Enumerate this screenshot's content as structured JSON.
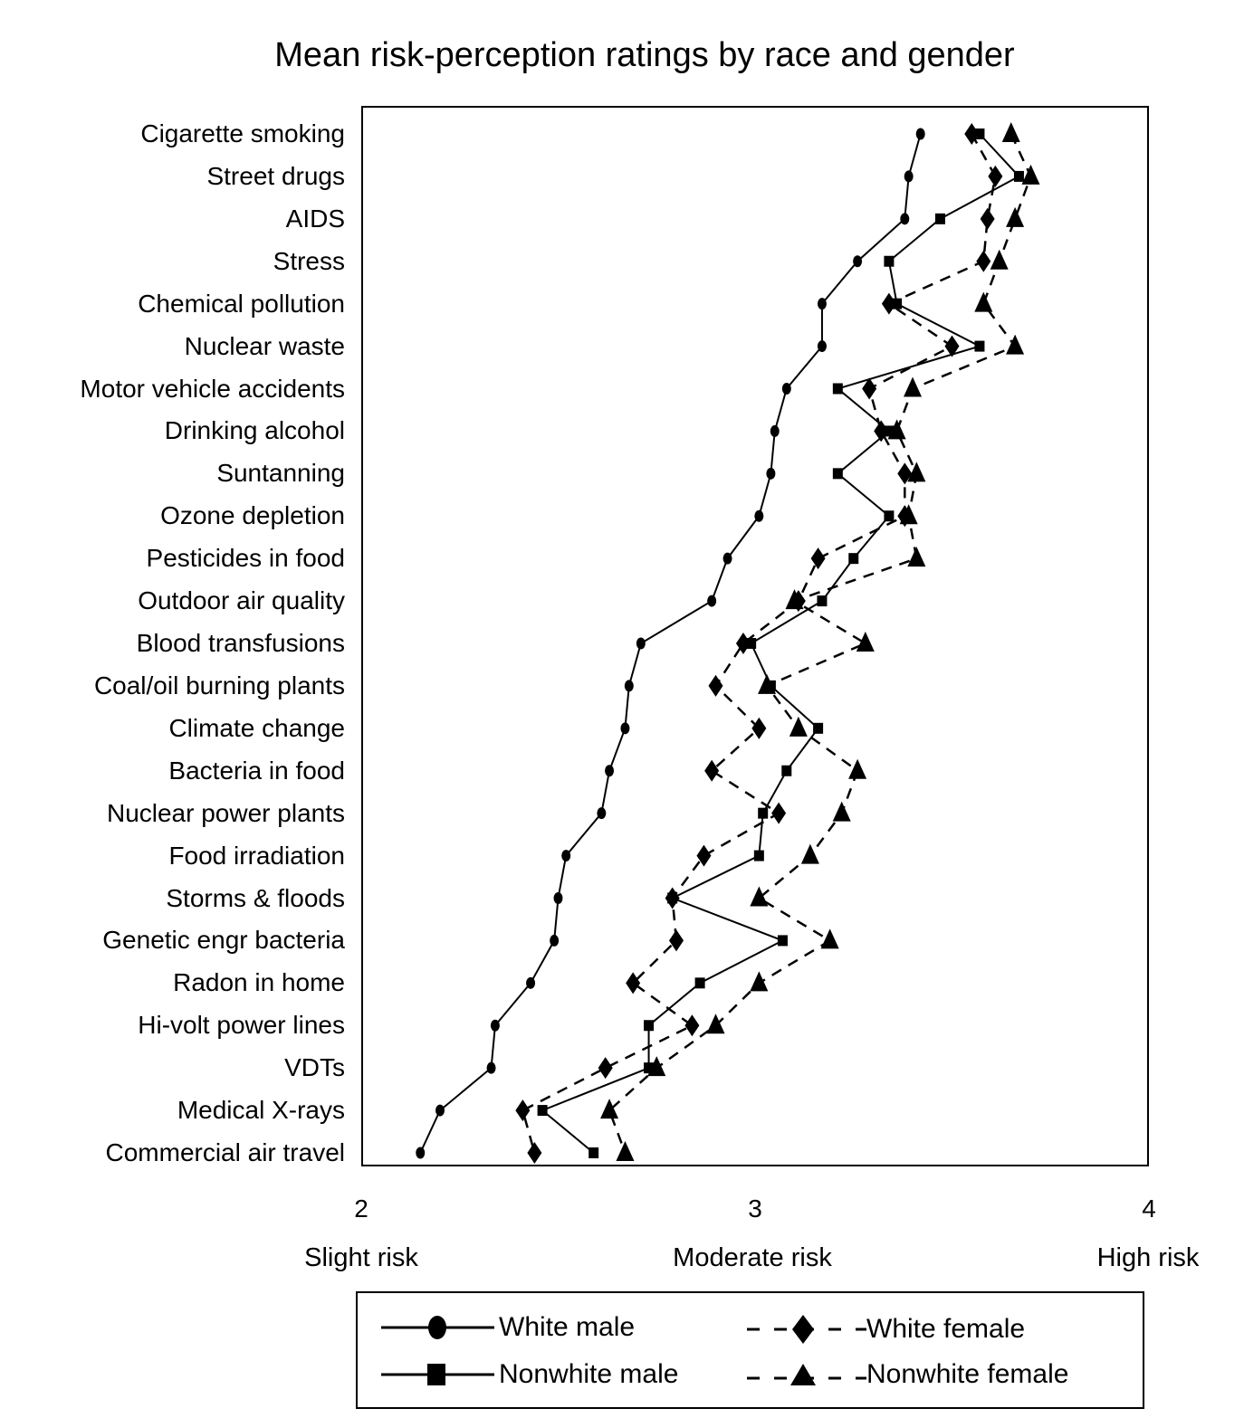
{
  "chart_data": {
    "type": "line",
    "title": "Mean risk-perception ratings by race and gender",
    "xlabel": "",
    "ylabel": "",
    "xlim": [
      2,
      4
    ],
    "xticks": [
      2,
      3,
      4
    ],
    "xtick_category_labels": [
      "Slight risk",
      "Moderate risk",
      "High risk"
    ],
    "orientation": "horizontal-values, categorical-y",
    "grid": false,
    "legend_position": "bottom",
    "categories": [
      "Cigarette smoking",
      "Street drugs",
      "AIDS",
      "Stress",
      "Chemical pollution",
      "Nuclear waste",
      "Motor vehicle accidents",
      "Drinking alcohol",
      "Suntanning",
      "Ozone depletion",
      "Pesticides in food",
      "Outdoor air quality",
      "Blood transfusions",
      "Coal/oil burning plants",
      "Climate change",
      "Bacteria in food",
      "Nuclear power plants",
      "Food irradiation",
      "Storms & floods",
      "Genetic engr bacteria",
      "Radon in home",
      "Hi-volt power lines",
      "VDTs",
      "Medical X-rays",
      "Commercial air travel"
    ],
    "series": [
      {
        "name": "White male",
        "marker": "circle",
        "line": "solid",
        "values": [
          3.42,
          3.39,
          3.38,
          3.26,
          3.17,
          3.17,
          3.08,
          3.05,
          3.04,
          3.01,
          2.93,
          2.89,
          2.71,
          2.68,
          2.67,
          2.63,
          2.61,
          2.52,
          2.5,
          2.49,
          2.43,
          2.34,
          2.33,
          2.2,
          2.15
        ]
      },
      {
        "name": "Nonwhite male",
        "marker": "square",
        "line": "solid",
        "values": [
          3.57,
          3.67,
          3.47,
          3.34,
          3.36,
          3.57,
          3.21,
          3.34,
          3.21,
          3.34,
          3.25,
          3.17,
          2.99,
          3.04,
          3.16,
          3.08,
          3.02,
          3.01,
          2.79,
          3.07,
          2.86,
          2.73,
          2.73,
          2.46,
          2.59
        ]
      },
      {
        "name": "White female",
        "marker": "diamond",
        "line": "dashed",
        "values": [
          3.55,
          3.61,
          3.59,
          3.58,
          3.34,
          3.5,
          3.29,
          3.32,
          3.38,
          3.38,
          3.16,
          3.11,
          2.97,
          2.9,
          3.01,
          2.89,
          3.06,
          2.87,
          2.79,
          2.8,
          2.69,
          2.84,
          2.62,
          2.41,
          2.44
        ]
      },
      {
        "name": "Nonwhite female",
        "marker": "triangle",
        "line": "dashed",
        "values": [
          3.65,
          3.7,
          3.66,
          3.62,
          3.58,
          3.66,
          3.4,
          3.36,
          3.41,
          3.39,
          3.41,
          3.1,
          3.28,
          3.03,
          3.11,
          3.26,
          3.22,
          3.14,
          3.01,
          3.19,
          3.01,
          2.9,
          2.75,
          2.63,
          2.67
        ]
      }
    ]
  },
  "labels": {
    "title": "Mean risk-perception ratings by race and gender",
    "xticks": [
      "2",
      "3",
      "4"
    ],
    "xcats": [
      "Slight risk",
      "Moderate risk",
      "High risk"
    ],
    "legend": [
      "White male",
      "Nonwhite male",
      "White female",
      "Nonwhite female"
    ]
  }
}
